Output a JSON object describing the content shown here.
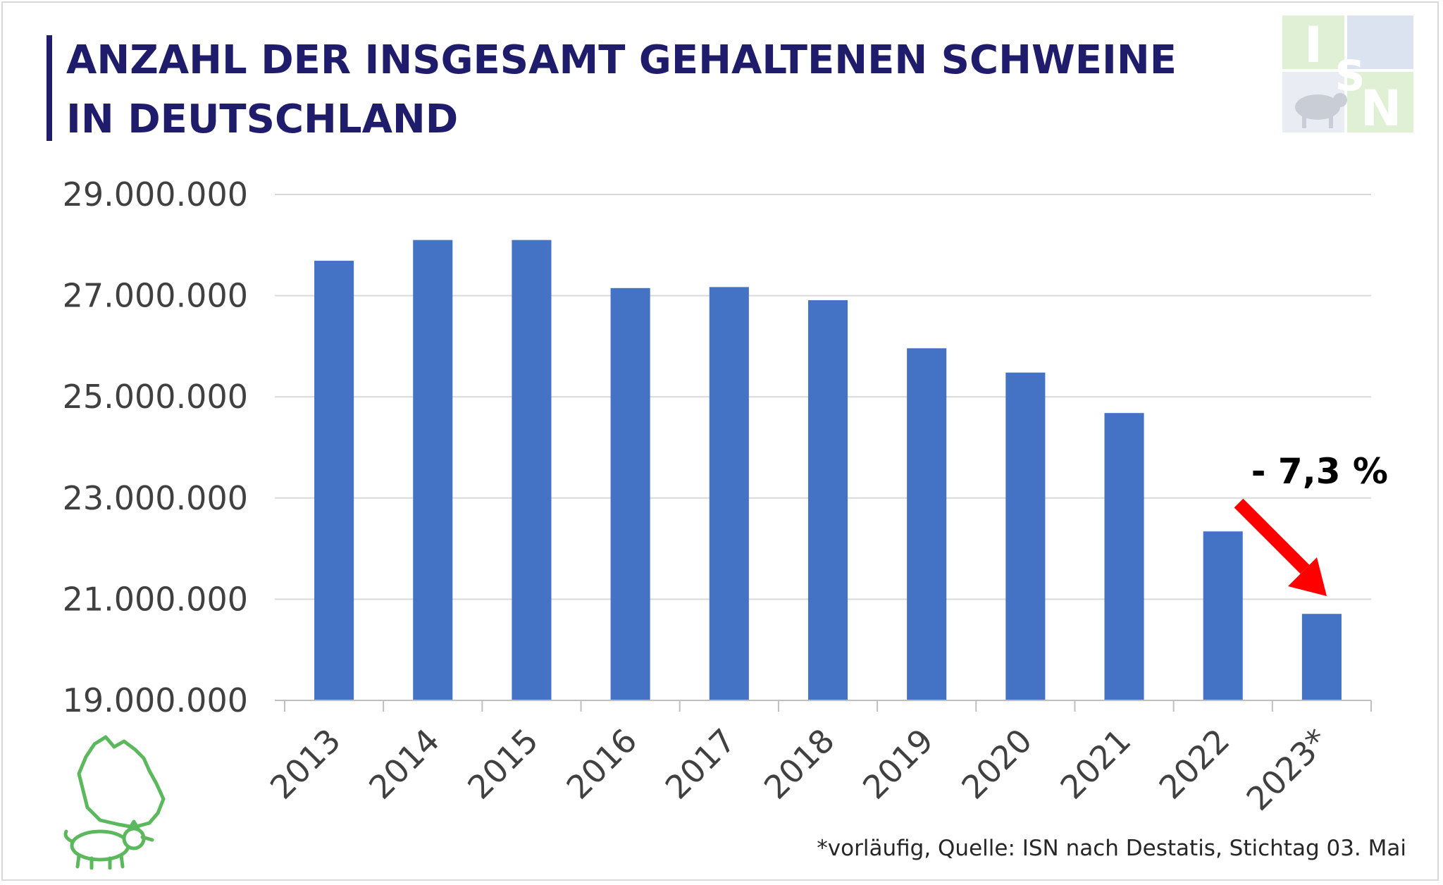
{
  "title_line1": "ANZAHL DER INSGESAMT GEHALTENEN SCHWEINE",
  "title_line2": "IN DEUTSCHLAND",
  "logo_letters": [
    "I",
    "S",
    "N"
  ],
  "footnote": "*vorläufig, Quelle: ISN nach Destatis, Stichtag 03. Mai",
  "chart_data": {
    "type": "bar",
    "categories": [
      "2013",
      "2014",
      "2015",
      "2016",
      "2017",
      "2018",
      "2019",
      "2020",
      "2021",
      "2022",
      "2023*"
    ],
    "values": [
      27690000,
      28100000,
      28100000,
      27150000,
      27170000,
      26910000,
      25960000,
      25480000,
      24680000,
      22340000,
      20710000
    ],
    "ylim": [
      19000000,
      29000000
    ],
    "yticks": [
      19000000,
      21000000,
      23000000,
      25000000,
      27000000,
      29000000
    ],
    "ytick_labels": [
      "19.000.000",
      "21.000.000",
      "23.000.000",
      "25.000.000",
      "27.000.000",
      "29.000.000"
    ],
    "grid": true,
    "bar_color": "#4472c4",
    "annotation": {
      "text": "- 7,3 %",
      "color": "#ff0000"
    }
  },
  "colors": {
    "title": "#1f1d6b",
    "bar": "#4472c4",
    "arrow": "#ff0000",
    "pig": "#5cb85c",
    "logo_light": "#d3e9c8",
    "logo_blue": "#dbe3f1"
  }
}
